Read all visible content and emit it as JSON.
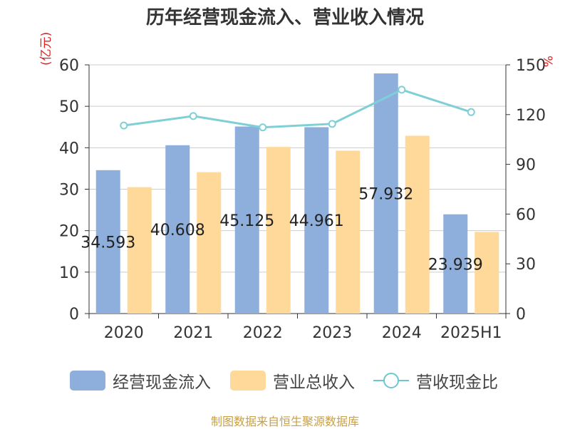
{
  "title": "历年经营现金流入、营业收入情况",
  "left_unit": "(亿元)",
  "right_unit": "%",
  "footer": "制图数据来自恒生聚源数据库",
  "legend": {
    "series1": "经营现金流入",
    "series2": "营业总收入",
    "series3": "营收现金比"
  },
  "colors": {
    "series1": "#8eaedb",
    "series2": "#ffd99a",
    "series3": "#7fd0d6"
  },
  "chart_data": {
    "type": "bar",
    "title": "历年经营现金流入、营业收入情况",
    "categories": [
      "2020",
      "2021",
      "2022",
      "2023",
      "2024",
      "2025H1"
    ],
    "series": [
      {
        "name": "经营现金流入",
        "axis": "left",
        "type": "bar",
        "values": [
          34.593,
          40.608,
          45.125,
          44.961,
          57.932,
          23.939
        ],
        "data_labels": [
          "34.593",
          "40.608",
          "45.125",
          "44.961",
          "57.932",
          "23.939"
        ]
      },
      {
        "name": "营业总收入",
        "axis": "left",
        "type": "bar",
        "values": [
          30.5,
          34.1,
          40.2,
          39.3,
          42.9,
          19.7
        ]
      },
      {
        "name": "营收现金比",
        "axis": "right",
        "type": "line",
        "values": [
          113.4,
          119.1,
          112.3,
          114.4,
          135.0,
          121.5
        ]
      }
    ],
    "left_axis": {
      "ylim": [
        0,
        60
      ],
      "ticks": [
        0,
        10,
        20,
        30,
        40,
        50,
        60
      ],
      "label": "(亿元)"
    },
    "right_axis": {
      "ylim": [
        0,
        150
      ],
      "ticks": [
        0,
        30,
        60,
        90,
        120,
        150
      ],
      "label": "%"
    },
    "grid": true,
    "legend_position": "bottom"
  }
}
